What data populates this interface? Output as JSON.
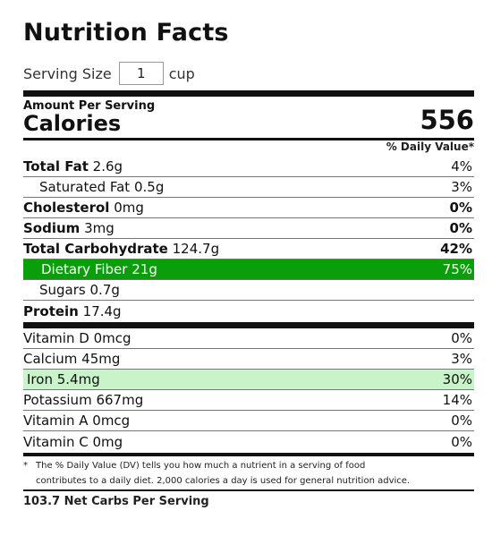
{
  "title": "Nutrition Facts",
  "serving": {
    "label": "Serving Size",
    "value": "1",
    "unit": "cup"
  },
  "amount_per_serving": "Amount Per Serving",
  "calories": {
    "label": "Calories",
    "value": "556"
  },
  "daily_value_header": "% Daily Value*",
  "nutrients": [
    {
      "name": "Total Fat",
      "amount": "2.6g",
      "pct": "4%"
    },
    {
      "name": "Saturated Fat",
      "amount": "0.5g",
      "pct": "3%"
    },
    {
      "name": "Cholesterol",
      "amount": "0mg",
      "pct": "0%"
    },
    {
      "name": "Sodium",
      "amount": "3mg",
      "pct": "0%"
    },
    {
      "name": "Total Carbohydrate",
      "amount": "124.7g",
      "pct": "42%"
    },
    {
      "name": "Dietary Fiber",
      "amount": "21g",
      "pct": "75%",
      "highlight": "#0b9e0b"
    },
    {
      "name": "Sugars",
      "amount": "0.7g",
      "pct": ""
    },
    {
      "name": "Protein",
      "amount": "17.4g",
      "pct": ""
    }
  ],
  "vitamins": [
    {
      "name": "Vitamin D",
      "amount": "0mcg",
      "pct": "0%"
    },
    {
      "name": "Calcium",
      "amount": "45mg",
      "pct": "3%"
    },
    {
      "name": "Iron",
      "amount": "5.4mg",
      "pct": "30%",
      "highlight": "#c9f4c9"
    },
    {
      "name": "Potassium",
      "amount": "667mg",
      "pct": "14%"
    },
    {
      "name": "Vitamin A",
      "amount": "0mcg",
      "pct": "0%"
    },
    {
      "name": "Vitamin C",
      "amount": "0mg",
      "pct": "0%"
    }
  ],
  "footnote": {
    "star": "*",
    "line1": "The % Daily Value (DV) tells you how much a nutrient in a serving of food",
    "line2": "contributes to a daily diet. 2,000 calories a day is used for general nutrition advice."
  },
  "net_carbs": "103.7 Net Carbs Per Serving"
}
